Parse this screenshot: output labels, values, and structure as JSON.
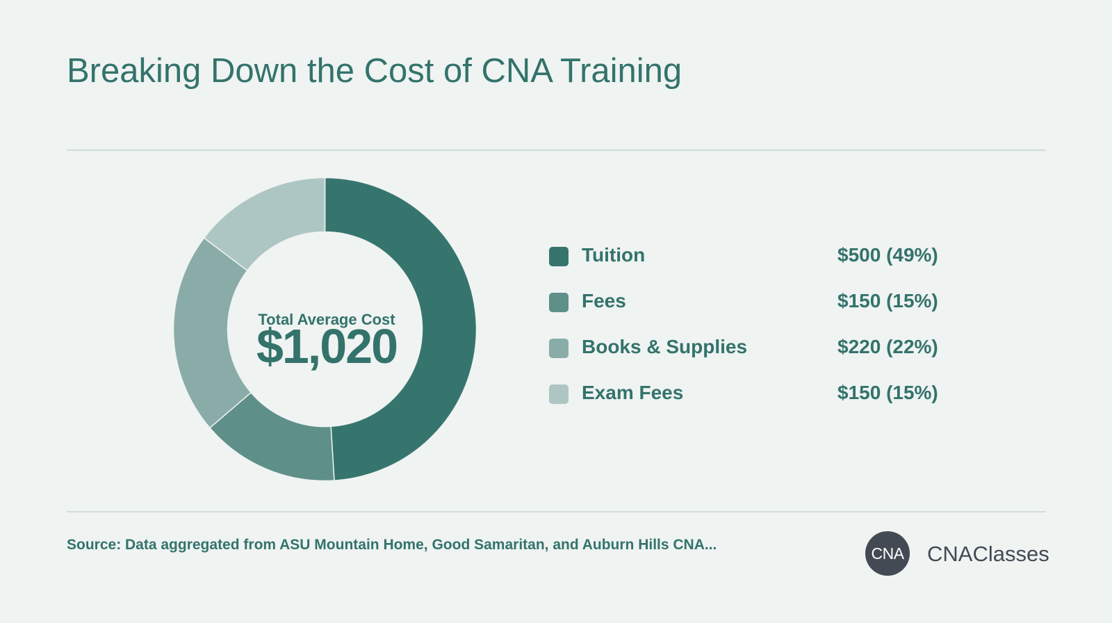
{
  "header": {
    "title": "Breaking Down the Cost of CNA Training"
  },
  "summary": {
    "label": "Total Average Cost",
    "value": "$1,020"
  },
  "legend": [
    {
      "label": "Tuition",
      "value_text": "$500 (49%)",
      "color": "#36756d"
    },
    {
      "label": "Fees",
      "value_text": "$150 (15%)",
      "color": "#5e9089"
    },
    {
      "label": "Books & Supplies",
      "value_text": "$220 (22%)",
      "color": "#8aaca8"
    },
    {
      "label": "Exam Fees",
      "value_text": "$150 (15%)",
      "color": "#aec6c3"
    }
  ],
  "chart_data": {
    "type": "pie",
    "style": "donut",
    "title": "Breaking Down the Cost of CNA Training",
    "categories": [
      "Tuition",
      "Fees",
      "Books & Supplies",
      "Exam Fees"
    ],
    "values": [
      500,
      150,
      220,
      150
    ],
    "percentages": [
      49,
      15,
      22,
      15
    ],
    "colors": [
      "#36756d",
      "#5e9089",
      "#8aaca8",
      "#aec6c3"
    ],
    "center_label": "Total Average Cost",
    "center_value": "$1,020",
    "legend_position": "right"
  },
  "footer": {
    "source": "Source: Data aggregated from ASU Mountain Home, Good Samaritan, and Auburn Hills CNA...",
    "logo_badge": "CNA",
    "logo_text": "CNAClasses"
  }
}
